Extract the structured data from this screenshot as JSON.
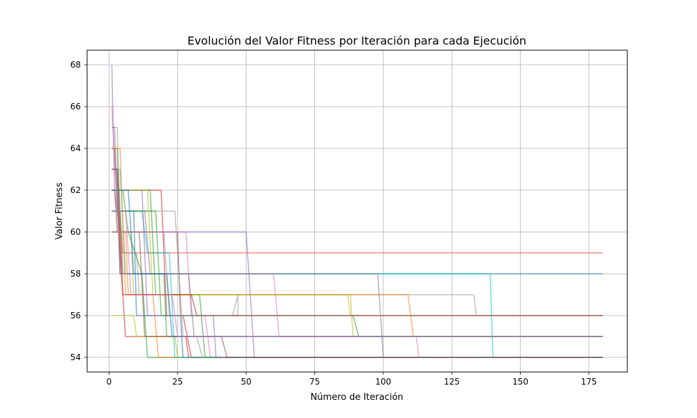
{
  "chart_data": {
    "type": "line",
    "title": "Evolución del Valor Fitness por Iteración para cada Ejecución",
    "xlabel": "Número de Iteración",
    "ylabel": "Valor Fitness",
    "xlim": [
      -8,
      189
    ],
    "ylim": [
      53.3,
      68.7
    ],
    "xticks": [
      0,
      25,
      50,
      75,
      100,
      125,
      150,
      175
    ],
    "yticks": [
      54,
      56,
      58,
      60,
      62,
      64,
      66,
      68
    ],
    "grid": true,
    "legend": "none",
    "series": [
      {
        "color": "#e24a33",
        "points": [
          [
            1,
            61
          ],
          [
            4,
            61
          ],
          [
            5,
            59
          ],
          [
            180,
            59
          ]
        ]
      },
      {
        "color": "#1f77b4",
        "points": [
          [
            1,
            63
          ],
          [
            3,
            63
          ],
          [
            4,
            58
          ],
          [
            180,
            58
          ]
        ]
      },
      {
        "color": "#bcbd22",
        "points": [
          [
            1,
            60
          ],
          [
            8,
            60
          ],
          [
            9,
            57
          ],
          [
            87,
            57
          ],
          [
            88,
            56
          ],
          [
            180,
            56
          ]
        ]
      },
      {
        "color": "#999999",
        "points": [
          [
            1,
            65
          ],
          [
            3,
            65
          ],
          [
            4,
            59
          ],
          [
            10,
            59
          ],
          [
            11,
            57
          ],
          [
            133,
            57
          ],
          [
            134,
            56
          ],
          [
            180,
            56
          ]
        ]
      },
      {
        "color": "#8c564b",
        "points": [
          [
            1,
            62
          ],
          [
            2,
            62
          ],
          [
            3,
            60
          ],
          [
            25,
            60
          ],
          [
            26,
            56
          ],
          [
            180,
            56
          ]
        ]
      },
      {
        "color": "#2ca02c",
        "points": [
          [
            1,
            64
          ],
          [
            3,
            64
          ],
          [
            5,
            58
          ],
          [
            20,
            58
          ],
          [
            21,
            55
          ],
          [
            180,
            55
          ]
        ]
      },
      {
        "color": "#ff7f0e",
        "points": [
          [
            1,
            60
          ],
          [
            6,
            60
          ],
          [
            7,
            57
          ],
          [
            109,
            57
          ],
          [
            111,
            55
          ],
          [
            180,
            55
          ]
        ]
      },
      {
        "color": "#17becf",
        "points": [
          [
            1,
            63
          ],
          [
            4,
            63
          ],
          [
            6,
            58
          ],
          [
            139,
            58
          ],
          [
            140,
            54
          ],
          [
            180,
            54
          ]
        ]
      },
      {
        "color": "#d62728",
        "points": [
          [
            1,
            64
          ],
          [
            2,
            64
          ],
          [
            4,
            59
          ],
          [
            6,
            55
          ],
          [
            28,
            55
          ],
          [
            29,
            54
          ],
          [
            180,
            54
          ]
        ]
      },
      {
        "color": "#e377c2",
        "points": [
          [
            1,
            66
          ],
          [
            3,
            61
          ],
          [
            5,
            58
          ],
          [
            60,
            58
          ],
          [
            62,
            55
          ],
          [
            112,
            55
          ],
          [
            113,
            54
          ],
          [
            180,
            54
          ]
        ]
      },
      {
        "color": "#9467bd",
        "points": [
          [
            1,
            68
          ],
          [
            2,
            62
          ],
          [
            4,
            60
          ],
          [
            50,
            60
          ],
          [
            53,
            54
          ],
          [
            180,
            54
          ]
        ]
      },
      {
        "color": "#7f7f7f",
        "points": [
          [
            1,
            65
          ],
          [
            2,
            65
          ],
          [
            4,
            58
          ],
          [
            98,
            58
          ],
          [
            100,
            54
          ],
          [
            180,
            54
          ]
        ]
      },
      {
        "color": "#2ca02c",
        "points": [
          [
            1,
            62
          ],
          [
            5,
            62
          ],
          [
            7,
            60
          ],
          [
            12,
            58
          ],
          [
            14,
            54
          ],
          [
            180,
            54
          ]
        ]
      },
      {
        "color": "#ff7f0e",
        "points": [
          [
            1,
            64
          ],
          [
            4,
            64
          ],
          [
            6,
            57
          ],
          [
            16,
            57
          ],
          [
            18,
            54
          ],
          [
            180,
            54
          ]
        ]
      },
      {
        "color": "#bcbd22",
        "points": [
          [
            1,
            56
          ],
          [
            9,
            56
          ],
          [
            10,
            55
          ],
          [
            24,
            55
          ],
          [
            25,
            54
          ],
          [
            180,
            54
          ]
        ]
      },
      {
        "color": "#1f77b4",
        "points": [
          [
            1,
            61
          ],
          [
            9,
            61
          ],
          [
            10,
            56
          ],
          [
            26,
            56
          ],
          [
            27,
            54
          ],
          [
            180,
            54
          ]
        ]
      },
      {
        "color": "#d62728",
        "points": [
          [
            1,
            62
          ],
          [
            19,
            62
          ],
          [
            21,
            56
          ],
          [
            27,
            56
          ],
          [
            30,
            54
          ],
          [
            180,
            54
          ]
        ]
      },
      {
        "color": "#999999",
        "points": [
          [
            1,
            61
          ],
          [
            24,
            61
          ],
          [
            27,
            55
          ],
          [
            32,
            55
          ],
          [
            34,
            54
          ],
          [
            180,
            54
          ]
        ]
      },
      {
        "color": "#e377c2",
        "points": [
          [
            1,
            60
          ],
          [
            28,
            60
          ],
          [
            30,
            56
          ],
          [
            35,
            56
          ],
          [
            37,
            54
          ],
          [
            180,
            54
          ]
        ]
      },
      {
        "color": "#17becf",
        "points": [
          [
            1,
            61
          ],
          [
            12,
            61
          ],
          [
            14,
            59
          ],
          [
            22,
            59
          ],
          [
            24,
            54
          ],
          [
            180,
            54
          ]
        ]
      },
      {
        "color": "#2ca02c",
        "points": [
          [
            1,
            62
          ],
          [
            15,
            62
          ],
          [
            17,
            57
          ],
          [
            33,
            57
          ],
          [
            35,
            54
          ],
          [
            180,
            54
          ]
        ]
      },
      {
        "color": "#9467bd",
        "points": [
          [
            1,
            62
          ],
          [
            12,
            62
          ],
          [
            14,
            56
          ],
          [
            38,
            56
          ],
          [
            39,
            54
          ],
          [
            180,
            54
          ]
        ]
      },
      {
        "color": "#8c564b",
        "points": [
          [
            1,
            60
          ],
          [
            11,
            60
          ],
          [
            13,
            55
          ],
          [
            41,
            55
          ],
          [
            43,
            54
          ],
          [
            180,
            54
          ]
        ]
      },
      {
        "color": "#7f7f7f",
        "points": [
          [
            1,
            61
          ],
          [
            13,
            61
          ],
          [
            15,
            58
          ],
          [
            29,
            58
          ],
          [
            31,
            55
          ],
          [
            180,
            55
          ]
        ]
      },
      {
        "color": "#bcbd22",
        "points": [
          [
            1,
            62
          ],
          [
            14,
            62
          ],
          [
            16,
            57
          ],
          [
            88,
            57
          ],
          [
            89,
            55
          ],
          [
            180,
            55
          ]
        ]
      },
      {
        "color": "#2ca02c",
        "points": [
          [
            1,
            61
          ],
          [
            17,
            61
          ],
          [
            19,
            56
          ],
          [
            89,
            56
          ],
          [
            91,
            55
          ],
          [
            180,
            55
          ]
        ]
      },
      {
        "color": "#d62728",
        "points": [
          [
            1,
            63
          ],
          [
            3,
            63
          ],
          [
            5,
            57
          ],
          [
            30,
            57
          ],
          [
            32,
            56
          ],
          [
            180,
            56
          ]
        ]
      },
      {
        "color": "#999999",
        "points": [
          [
            1,
            60
          ],
          [
            20,
            60
          ],
          [
            22,
            56
          ],
          [
            45,
            56
          ],
          [
            47,
            57
          ],
          [
            47,
            56
          ],
          [
            180,
            56
          ]
        ]
      },
      {
        "color": "#1f77b4",
        "points": [
          [
            1,
            62
          ],
          [
            7,
            62
          ],
          [
            9,
            58
          ],
          [
            21,
            58
          ],
          [
            23,
            55
          ],
          [
            180,
            55
          ]
        ]
      },
      {
        "color": "#e377c2",
        "points": [
          [
            1,
            61
          ],
          [
            6,
            61
          ],
          [
            8,
            57
          ],
          [
            23,
            57
          ],
          [
            25,
            55
          ],
          [
            180,
            55
          ]
        ]
      }
    ]
  }
}
